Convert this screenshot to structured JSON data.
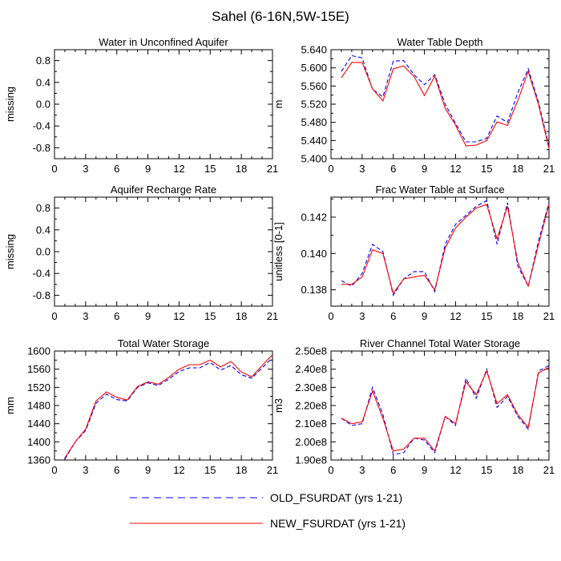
{
  "figure": {
    "title": "Sahel (6-16N,5W-15E)",
    "colors": {
      "old": "#0000ff",
      "new": "#ff0000",
      "axis": "#000000"
    }
  },
  "legend": {
    "items": [
      {
        "key": "old",
        "label": "OLD_FSURDAT (yrs 1-21)",
        "style": "dashed"
      },
      {
        "key": "new",
        "label": "NEW_FSURDAT (yrs 1-21)",
        "style": "solid"
      }
    ]
  },
  "chart_data": [
    {
      "type": "line",
      "title": "Water in Unconfined Aquifer",
      "ylabel": "missing",
      "xlim": [
        0,
        21
      ],
      "ylim": [
        -1,
        1
      ],
      "xticks": [
        0,
        3,
        6,
        9,
        12,
        15,
        18,
        21
      ],
      "yticks": [
        -0.8,
        -0.4,
        0.0,
        0.4,
        0.8
      ],
      "ytick_labels": [
        "-0.8",
        "-0.4",
        "0.0",
        "0.4",
        "0.8"
      ],
      "x": [],
      "series": []
    },
    {
      "type": "line",
      "title": "Water Table Depth",
      "ylabel": "m",
      "xlim": [
        0,
        21
      ],
      "ylim": [
        5.4,
        5.64
      ],
      "xticks": [
        0,
        3,
        6,
        9,
        12,
        15,
        18,
        21
      ],
      "yticks": [
        5.4,
        5.44,
        5.48,
        5.52,
        5.56,
        5.6,
        5.64
      ],
      "ytick_labels": [
        "5.400",
        "5.440",
        "5.480",
        "5.520",
        "5.560",
        "5.600",
        "5.640"
      ],
      "x": [
        1,
        2,
        3,
        4,
        5,
        6,
        7,
        8,
        9,
        10,
        11,
        12,
        13,
        14,
        15,
        16,
        17,
        18,
        19,
        20,
        21
      ],
      "series": [
        {
          "name": "OLD_FSURDAT (yrs 1-21)",
          "key": "old",
          "values": [
            5.592,
            5.627,
            5.622,
            5.553,
            5.536,
            5.615,
            5.616,
            5.585,
            5.563,
            5.585,
            5.52,
            5.478,
            5.437,
            5.437,
            5.445,
            5.494,
            5.48,
            5.545,
            5.598,
            5.524,
            5.427
          ]
        },
        {
          "name": "NEW_FSURDAT (yrs 1-21)",
          "key": "new",
          "values": [
            5.578,
            5.612,
            5.612,
            5.554,
            5.527,
            5.598,
            5.604,
            5.581,
            5.539,
            5.582,
            5.511,
            5.474,
            5.428,
            5.43,
            5.44,
            5.481,
            5.473,
            5.528,
            5.592,
            5.519,
            5.422
          ]
        }
      ]
    },
    {
      "type": "line",
      "title": "Aquifer Recharge Rate",
      "ylabel": "missing",
      "xlim": [
        0,
        21
      ],
      "ylim": [
        -1,
        1
      ],
      "xticks": [
        0,
        3,
        6,
        9,
        12,
        15,
        18,
        21
      ],
      "yticks": [
        -0.8,
        -0.4,
        0.0,
        0.4,
        0.8
      ],
      "ytick_labels": [
        "-0.8",
        "-0.4",
        "0.0",
        "0.4",
        "0.8"
      ],
      "x": [],
      "series": []
    },
    {
      "type": "line",
      "title": "Frac Water Table at Surface",
      "ylabel": "unitless [0-1]",
      "xlim": [
        0,
        21
      ],
      "ylim": [
        0.1371,
        0.1431
      ],
      "xticks": [
        0,
        3,
        6,
        9,
        12,
        15,
        18,
        21
      ],
      "yticks": [
        0.138,
        0.14,
        0.142
      ],
      "ytick_labels": [
        "0.138",
        "0.140",
        "0.142"
      ],
      "x": [
        1,
        2,
        3,
        4,
        5,
        6,
        7,
        8,
        9,
        10,
        11,
        12,
        13,
        14,
        15,
        16,
        17,
        18,
        19,
        20,
        21
      ],
      "series": [
        {
          "name": "OLD_FSURDAT (yrs 1-21)",
          "key": "old",
          "values": [
            0.1385,
            0.1382,
            0.1389,
            0.1405,
            0.1401,
            0.1377,
            0.1386,
            0.139,
            0.139,
            0.1379,
            0.1405,
            0.1416,
            0.1421,
            0.1426,
            0.1429,
            0.1405,
            0.1428,
            0.1393,
            0.1382,
            0.1407,
            0.1428
          ]
        },
        {
          "name": "NEW_FSURDAT (yrs 1-21)",
          "key": "new",
          "values": [
            0.1383,
            0.1383,
            0.1387,
            0.1402,
            0.14,
            0.1378,
            0.1386,
            0.1387,
            0.1388,
            0.138,
            0.1403,
            0.1414,
            0.142,
            0.1425,
            0.1427,
            0.1408,
            0.1426,
            0.1395,
            0.1382,
            0.1405,
            0.1427
          ]
        }
      ]
    },
    {
      "type": "line",
      "title": "Total Water Storage",
      "ylabel": "mm",
      "xlim": [
        0,
        21
      ],
      "ylim": [
        1360,
        1600
      ],
      "xticks": [
        0,
        3,
        6,
        9,
        12,
        15,
        18,
        21
      ],
      "yticks": [
        1360,
        1400,
        1440,
        1480,
        1520,
        1560,
        1600
      ],
      "ytick_labels": [
        "1360",
        "1400",
        "1440",
        "1480",
        "1520",
        "1560",
        "1600"
      ],
      "x": [
        1,
        2,
        3,
        4,
        5,
        6,
        7,
        8,
        9,
        10,
        11,
        12,
        13,
        14,
        15,
        16,
        17,
        18,
        19,
        20,
        21
      ],
      "series": [
        {
          "name": "OLD_FSURDAT (yrs 1-21)",
          "key": "old",
          "values": [
            1362,
            1400,
            1425,
            1485,
            1505,
            1493,
            1490,
            1520,
            1530,
            1524,
            1538,
            1555,
            1563,
            1563,
            1575,
            1558,
            1568,
            1548,
            1540,
            1563,
            1585
          ]
        },
        {
          "name": "NEW_FSURDAT (yrs 1-21)",
          "key": "new",
          "values": [
            1365,
            1400,
            1428,
            1490,
            1510,
            1498,
            1492,
            1522,
            1532,
            1527,
            1542,
            1560,
            1570,
            1570,
            1580,
            1565,
            1577,
            1554,
            1543,
            1568,
            1592
          ]
        }
      ]
    },
    {
      "type": "line",
      "title": "River Channel Total Water Storage",
      "ylabel": "m3",
      "xlim": [
        0,
        21
      ],
      "ylim": [
        190000000.0,
        250000000.0
      ],
      "xticks": [
        0,
        3,
        6,
        9,
        12,
        15,
        18,
        21
      ],
      "yticks": [
        190000000.0,
        200000000.0,
        210000000.0,
        220000000.0,
        230000000.0,
        240000000.0,
        250000000.0
      ],
      "ytick_labels": [
        "1.90e8",
        "2.00e8",
        "2.10e8",
        "2.20e8",
        "2.30e8",
        "2.40e8",
        "2.50e8"
      ],
      "x": [
        1,
        2,
        3,
        4,
        5,
        6,
        7,
        8,
        9,
        10,
        11,
        12,
        13,
        14,
        15,
        16,
        17,
        18,
        19,
        20,
        21
      ],
      "series": [
        {
          "name": "OLD_FSURDAT (yrs 1-21)",
          "key": "old",
          "values": [
            213000000.0,
            209000000.0,
            210000000.0,
            230000000.0,
            215000000.0,
            193000000.0,
            194000000.0,
            202000000.0,
            201000000.0,
            194000000.0,
            214000000.0,
            209000000.0,
            235000000.0,
            224000000.0,
            240000000.0,
            219000000.0,
            225000000.0,
            214000000.0,
            207000000.0,
            239000000.0,
            242000000.0
          ]
        },
        {
          "name": "NEW_FSURDAT (yrs 1-21)",
          "key": "new",
          "values": [
            213000000.0,
            210000000.0,
            211000000.0,
            228000000.0,
            213000000.0,
            195000000.0,
            196000000.0,
            202000000.0,
            202000000.0,
            195000000.0,
            214000000.0,
            210000000.0,
            233000000.0,
            226000000.0,
            239000000.0,
            221000000.0,
            226000000.0,
            215000000.0,
            208000000.0,
            238000000.0,
            241000000.0
          ]
        }
      ]
    }
  ]
}
